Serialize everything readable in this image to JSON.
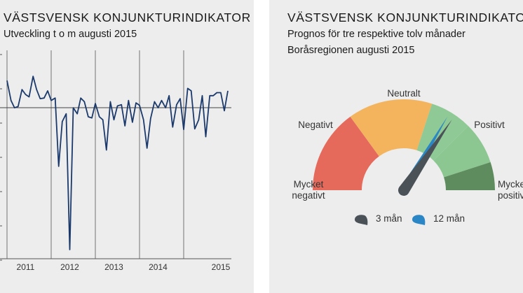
{
  "colors": {
    "line": "#1b3a6b",
    "very_negative": "#e66a5c",
    "negative": "#f3b45d",
    "neutral": "#8fc995",
    "positive": "#8cc690",
    "very_positive": "#5f8c5f",
    "needle_3m": "#4a5258",
    "needle_12m": "#2a86c4"
  },
  "left": {
    "title": "VÄSTSVENSK KONJUNKTURINDIKATOR",
    "subtitle": "Utveckling t o m augusti 2015"
  },
  "right": {
    "title": "VÄSTSVENSK KONJUNKTURINDIKATOR",
    "subtitle1": "Prognos för tre respektive tolv månader",
    "subtitle2": "Boråsregionen augusti 2015"
  },
  "chart_data": [
    {
      "type": "line",
      "x_ticks": [
        "2011",
        "2012",
        "2013",
        "2014",
        "2015"
      ],
      "ylim": [
        -1.2,
        1.2
      ],
      "baseline": 0,
      "grid": "vertical year lines",
      "series": [
        {
          "x": [
            2010.58,
            2010.67,
            2010.75,
            2010.83,
            2010.92,
            2011.0,
            2011.08,
            2011.17,
            2011.25,
            2011.33,
            2011.42,
            2011.5,
            2011.58,
            2011.67,
            2011.75,
            2011.83,
            2011.92,
            2012.0,
            2012.08,
            2012.17,
            2012.25,
            2012.33,
            2012.42,
            2012.5,
            2012.58,
            2012.67,
            2012.75,
            2012.83,
            2012.92,
            2013.0,
            2013.08,
            2013.17,
            2013.25,
            2013.33,
            2013.42,
            2013.5,
            2013.58,
            2013.67,
            2013.75,
            2013.83,
            2013.92,
            2014.0,
            2014.08,
            2014.17,
            2014.25,
            2014.33,
            2014.42,
            2014.5,
            2014.58,
            2014.67,
            2014.75,
            2014.83,
            2014.92,
            2015.0,
            2015.08,
            2015.17,
            2015.25,
            2015.33,
            2015.42,
            2015.5,
            2015.58
          ],
          "values": [
            0.45,
            0.12,
            0.0,
            0.02,
            0.3,
            0.22,
            0.18,
            0.52,
            0.3,
            0.15,
            0.16,
            0.28,
            0.12,
            0.16,
            -0.97,
            -0.23,
            -0.1,
            -2.35,
            0.0,
            -0.1,
            0.16,
            0.1,
            -0.15,
            -0.17,
            0.07,
            -0.15,
            -0.2,
            -0.7,
            0.1,
            -0.2,
            0.03,
            0.05,
            -0.3,
            0.12,
            -0.24,
            0.08,
            0.04,
            -0.2,
            -0.67,
            -0.18,
            0.1,
            0.0,
            0.12,
            0.0,
            0.2,
            -0.32,
            0.05,
            0.15,
            -0.36,
            0.32,
            0.28,
            -0.35,
            -0.2,
            0.2,
            -0.48,
            0.2,
            0.2,
            0.25,
            0.25,
            -0.05,
            0.28
          ]
        }
      ]
    },
    {
      "type": "gauge",
      "segments": [
        "Mycket negativt",
        "Negativt",
        "Neutralt",
        "Positivt",
        "Mycket positivt"
      ],
      "series": [
        {
          "name": "3 mån",
          "value": 0.69
        },
        {
          "name": "12 mån",
          "value": 0.67
        }
      ]
    }
  ],
  "gauge": {
    "label_very_negative_1": "Mycket",
    "label_very_negative_2": "negativt",
    "label_negative": "Negativt",
    "label_neutral": "Neutralt",
    "label_positive": "Positivt",
    "label_very_positive_1": "Mycket",
    "label_very_positive_2": "positivt"
  },
  "legend": {
    "item1_label": "3 mån",
    "item2_label": "12 mån"
  }
}
